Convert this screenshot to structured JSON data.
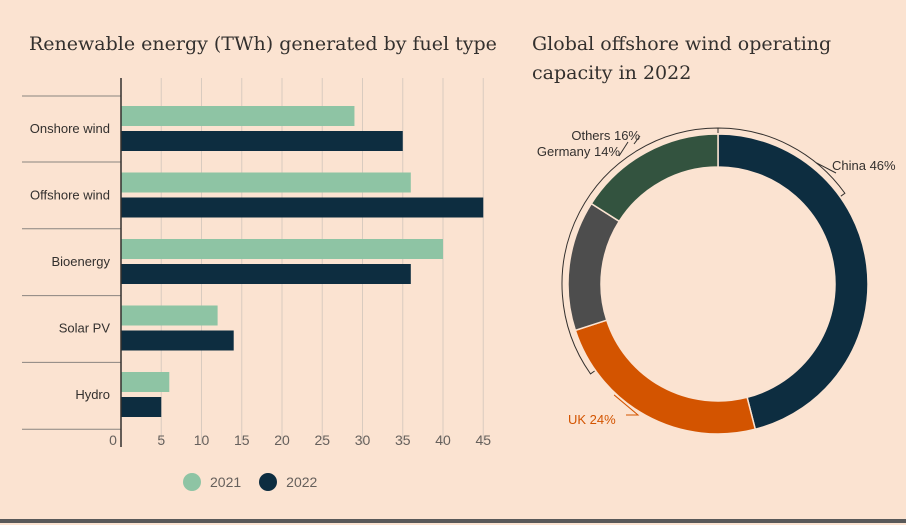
{
  "colors": {
    "background": "#fbe3d1",
    "series_2021": "#8ec4a4",
    "series_2022": "#0d2d40",
    "axis": "#66605c",
    "grid": "#d9cbbf"
  },
  "chart_data": [
    {
      "type": "bar",
      "orientation": "horizontal",
      "title": "Renewable energy (TWh) generated by fuel type",
      "categories": [
        "Onshore wind",
        "Offshore wind",
        "Bioenergy",
        "Solar PV",
        "Hydro"
      ],
      "series": [
        {
          "name": "2021",
          "color": "#8ec4a4",
          "values": [
            29,
            36,
            40,
            12,
            6
          ]
        },
        {
          "name": "2022",
          "color": "#0d2d40",
          "values": [
            35,
            45,
            36,
            14,
            5
          ]
        }
      ],
      "xticks": [
        0,
        5,
        10,
        15,
        20,
        25,
        30,
        35,
        40,
        45
      ],
      "xlim": [
        0,
        45
      ],
      "xlabel": "",
      "ylabel": "",
      "grid": true,
      "legend_position": "bottom"
    },
    {
      "type": "pie",
      "donut": true,
      "title": "Global offshore wind operating capacity in 2022",
      "slices": [
        {
          "label": "China",
          "value": 46,
          "text": "China 46%",
          "color": "#0d2d40"
        },
        {
          "label": "UK",
          "value": 24,
          "text": "UK 24%",
          "color": "#d35400"
        },
        {
          "label": "Germany",
          "value": 14,
          "text": "Germany 14%",
          "color": "#4d4d4d"
        },
        {
          "label": "Others",
          "value": 16,
          "text": "Others 16%",
          "color": "#33533f"
        }
      ]
    }
  ]
}
